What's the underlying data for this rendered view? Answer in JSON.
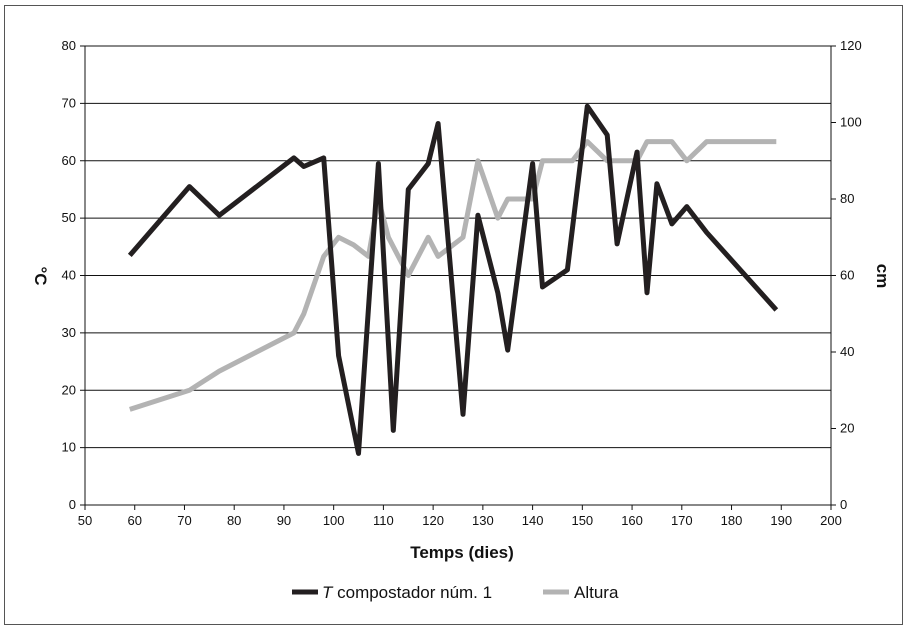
{
  "chart_data": {
    "type": "line",
    "title": "",
    "xlabel": "Temps (dies)",
    "ylabel_left": "°C",
    "ylabel_right": "cm",
    "xlim": [
      50,
      200
    ],
    "ylim_left": [
      0,
      80
    ],
    "ylim_right": [
      0,
      120
    ],
    "x_ticks": [
      "50",
      "60",
      "70",
      "80",
      "90",
      "100",
      "110",
      "120",
      "130",
      "140",
      "150",
      "160",
      "170",
      "180",
      "190",
      "200"
    ],
    "y_left_ticks": [
      "0",
      "10",
      "20",
      "30",
      "40",
      "50",
      "60",
      "70",
      "80"
    ],
    "y_right_ticks": [
      "0",
      "20",
      "40",
      "60",
      "80",
      "100",
      "120"
    ],
    "grid": "horizontal",
    "legend_position": "bottom",
    "series": [
      {
        "name_prefix": "T",
        "name_rest": " compostador núm. 1",
        "axis": "left",
        "color": "#231f20",
        "points": [
          [
            59,
            43.5
          ],
          [
            71,
            55.5
          ],
          [
            77,
            50.5
          ],
          [
            92,
            60.5
          ],
          [
            94,
            59
          ],
          [
            98,
            60.5
          ],
          [
            101,
            26
          ],
          [
            105,
            9
          ],
          [
            109,
            59.5
          ],
          [
            112,
            13
          ],
          [
            115,
            55
          ],
          [
            119,
            59.5
          ],
          [
            121,
            66.5
          ],
          [
            126,
            15.8
          ],
          [
            129,
            50.5
          ],
          [
            133,
            37
          ],
          [
            135,
            27
          ],
          [
            140,
            59.5
          ],
          [
            142,
            38
          ],
          [
            147,
            41
          ],
          [
            151,
            69.5
          ],
          [
            155,
            64.5
          ],
          [
            157,
            45.5
          ],
          [
            161,
            61.5
          ],
          [
            163,
            37
          ],
          [
            165,
            56
          ],
          [
            168,
            49
          ],
          [
            171,
            52
          ],
          [
            175,
            47.5
          ],
          [
            189,
            34
          ]
        ]
      },
      {
        "name": "Altura",
        "axis": "right",
        "color": "#b3b3b3",
        "points": [
          [
            59,
            25
          ],
          [
            71,
            30
          ],
          [
            77,
            35
          ],
          [
            92,
            45
          ],
          [
            94,
            50
          ],
          [
            98,
            65
          ],
          [
            101,
            70
          ],
          [
            104,
            68
          ],
          [
            107,
            65
          ],
          [
            109,
            80
          ],
          [
            111,
            70
          ],
          [
            115,
            60
          ],
          [
            119,
            70
          ],
          [
            121,
            65
          ],
          [
            126,
            70
          ],
          [
            129,
            90
          ],
          [
            133,
            75
          ],
          [
            135,
            80
          ],
          [
            140,
            80
          ],
          [
            142,
            90
          ],
          [
            148,
            90
          ],
          [
            151,
            95
          ],
          [
            155,
            90
          ],
          [
            161,
            90
          ],
          [
            163,
            95
          ],
          [
            168,
            95
          ],
          [
            171,
            90
          ],
          [
            175,
            95
          ],
          [
            189,
            95
          ]
        ]
      }
    ]
  }
}
